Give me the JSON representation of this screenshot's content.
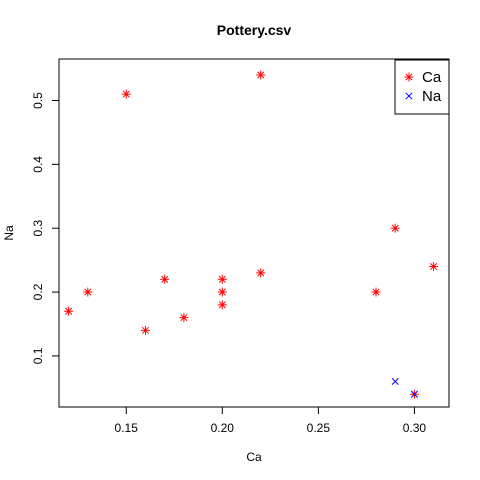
{
  "chart_data": {
    "type": "scatter",
    "title": "Pottery.csv",
    "xlabel": "Ca",
    "ylabel": "Na",
    "xlim": [
      0.115,
      0.318
    ],
    "ylim": [
      0.02,
      0.565
    ],
    "x_ticks": [
      "0.15",
      "0.20",
      "0.25",
      "0.30"
    ],
    "y_ticks": [
      "0.1",
      "0.2",
      "0.3",
      "0.4",
      "0.5"
    ],
    "grid": false,
    "legend_position": "top-right",
    "series": [
      {
        "name": "Ca",
        "marker": "asterisk",
        "color": "#ff0000",
        "points": [
          {
            "x": 0.12,
            "y": 0.17
          },
          {
            "x": 0.13,
            "y": 0.2
          },
          {
            "x": 0.15,
            "y": 0.51
          },
          {
            "x": 0.16,
            "y": 0.14
          },
          {
            "x": 0.17,
            "y": 0.22
          },
          {
            "x": 0.18,
            "y": 0.16
          },
          {
            "x": 0.2,
            "y": 0.22
          },
          {
            "x": 0.2,
            "y": 0.2
          },
          {
            "x": 0.2,
            "y": 0.18
          },
          {
            "x": 0.22,
            "y": 0.54
          },
          {
            "x": 0.22,
            "y": 0.23
          },
          {
            "x": 0.28,
            "y": 0.2
          },
          {
            "x": 0.29,
            "y": 0.3
          },
          {
            "x": 0.3,
            "y": 0.04
          },
          {
            "x": 0.31,
            "y": 0.24
          }
        ]
      },
      {
        "name": "Na",
        "marker": "cross",
        "color": "#0000ff",
        "points": [
          {
            "x": 0.29,
            "y": 0.06
          },
          {
            "x": 0.3,
            "y": 0.04
          }
        ]
      }
    ]
  }
}
